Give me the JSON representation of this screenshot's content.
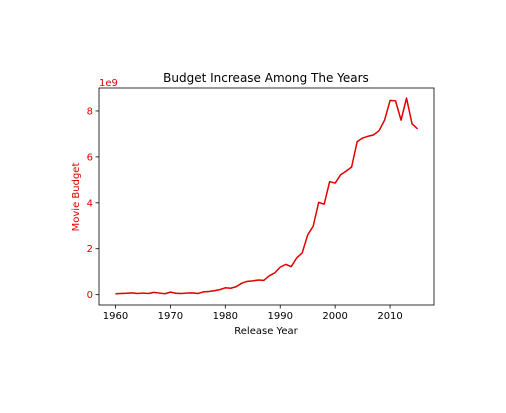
{
  "colors": {
    "line": "#e00000",
    "y_axis_text": "#e00000",
    "x_axis_text": "#000000",
    "axes": "#000000",
    "background": "#ffffff"
  },
  "chart_data": {
    "type": "line",
    "title": "Budget Increase Among The Years",
    "xlabel": "Release Year",
    "ylabel": "Movie Budget",
    "y_offset_text": "1e9",
    "xlim": [
      1957,
      2018
    ],
    "ylim": [
      -0.45,
      9.0
    ],
    "x_ticks": [
      1960,
      1970,
      1980,
      1990,
      2000,
      2010
    ],
    "x_tick_labels": [
      "1960",
      "1970",
      "1980",
      "1990",
      "2000",
      "2010"
    ],
    "y_ticks": [
      0,
      2,
      4,
      6,
      8
    ],
    "y_tick_labels": [
      "0",
      "2",
      "4",
      "6",
      "8"
    ],
    "grid": false,
    "legend": "none",
    "series": [
      {
        "x": [
          1960,
          1961,
          1962,
          1963,
          1964,
          1965,
          1966,
          1967,
          1968,
          1969,
          1970,
          1971,
          1972,
          1973,
          1974,
          1975,
          1976,
          1977,
          1978,
          1979,
          1980,
          1981,
          1982,
          1983,
          1984,
          1985,
          1986,
          1987,
          1988,
          1989,
          1990,
          1991,
          1992,
          1993,
          1994,
          1995,
          1996,
          1997,
          1998,
          1999,
          2000,
          2001,
          2002,
          2003,
          2004,
          2005,
          2006,
          2007,
          2008,
          2009,
          2010,
          2011,
          2012,
          2013,
          2014,
          2015
        ],
        "values": [
          0.04,
          0.05,
          0.06,
          0.08,
          0.05,
          0.07,
          0.05,
          0.1,
          0.07,
          0.04,
          0.11,
          0.06,
          0.05,
          0.07,
          0.08,
          0.05,
          0.12,
          0.14,
          0.17,
          0.22,
          0.3,
          0.28,
          0.35,
          0.5,
          0.58,
          0.6,
          0.64,
          0.62,
          0.82,
          0.95,
          1.2,
          1.32,
          1.22,
          1.6,
          1.82,
          2.6,
          2.98,
          4.02,
          3.94,
          4.92,
          4.86,
          5.22,
          5.38,
          5.56,
          6.66,
          6.82,
          6.9,
          6.96,
          7.14,
          7.6,
          8.46,
          8.44,
          7.6,
          8.56,
          7.44,
          7.22
        ]
      }
    ]
  }
}
